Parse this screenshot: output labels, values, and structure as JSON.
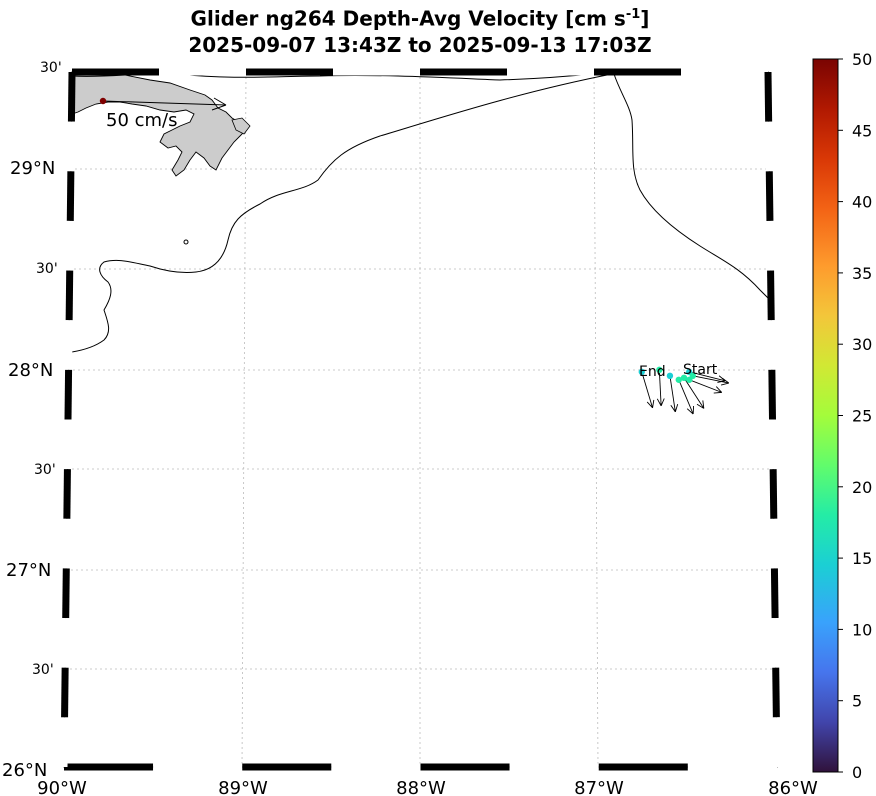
{
  "title": {
    "line1_prefix": "Glider ng264 Depth-Avg Velocity [cm s",
    "line1_exponent": "-1",
    "line1_suffix": "]",
    "line2": "2025-09-07 13:43Z to 2025-09-13 17:03Z"
  },
  "map": {
    "lon_range": [
      -90,
      -86
    ],
    "lat_range": [
      26,
      29.5
    ],
    "lon_labels": [
      "90°W",
      "89°W",
      "88°W",
      "87°W",
      "86°W"
    ],
    "lat_labels_major": [
      "26°N",
      "27°N",
      "28°N",
      "29°N"
    ],
    "lat_labels_minor": [
      "30'",
      "30'",
      "30'",
      "30'"
    ],
    "land_color": "#cccccc",
    "gridline_style": "dotted"
  },
  "scale_arrow": {
    "label": "50 cm/s",
    "color": "#7f0000"
  },
  "track_labels": {
    "start": "Start",
    "end": "End"
  },
  "colorbar": {
    "min": 0,
    "max": 50,
    "ticks": [
      "0",
      "5",
      "10",
      "15",
      "20",
      "25",
      "30",
      "35",
      "40",
      "45",
      "50"
    ],
    "colormap": "turbo"
  },
  "glider_points": [
    {
      "lon": -86.47,
      "lat": 27.99,
      "speed": 16
    },
    {
      "lon": -86.45,
      "lat": 27.97,
      "speed": 17
    },
    {
      "lon": -86.47,
      "lat": 27.95,
      "speed": 17
    },
    {
      "lon": -86.5,
      "lat": 27.96,
      "speed": 18
    },
    {
      "lon": -86.53,
      "lat": 27.95,
      "speed": 17
    },
    {
      "lon": -86.58,
      "lat": 27.97,
      "speed": 16
    },
    {
      "lon": -86.64,
      "lat": 28.0,
      "speed": 17
    },
    {
      "lon": -86.74,
      "lat": 27.99,
      "speed": 16
    }
  ]
}
